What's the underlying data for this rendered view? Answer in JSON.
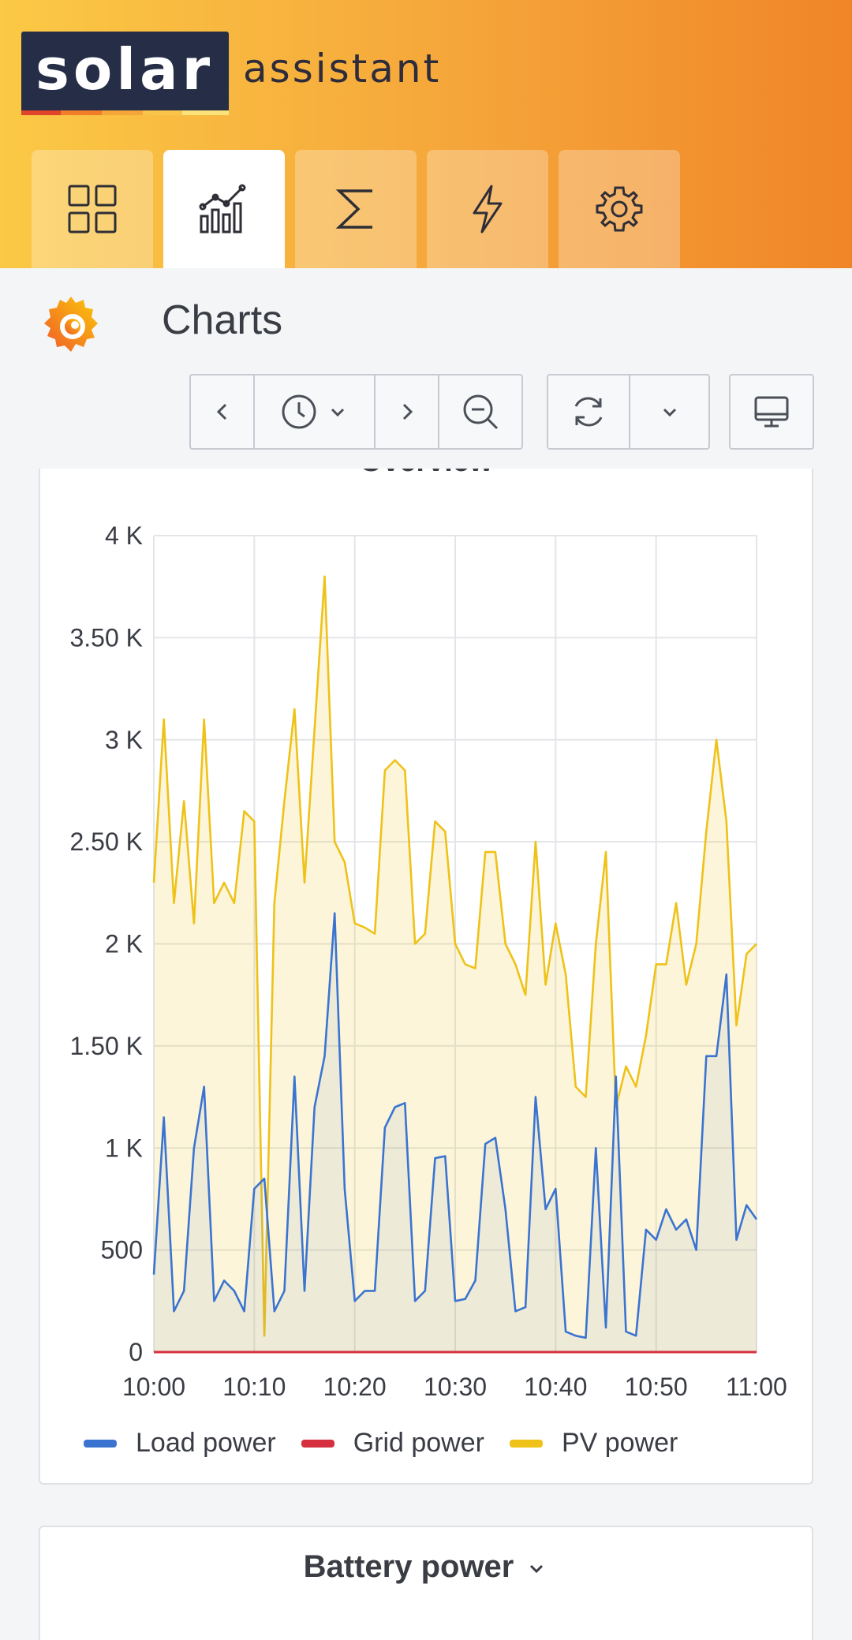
{
  "brand": {
    "logo_text": "solar",
    "logo_sub": "assistant"
  },
  "nav": {
    "tabs": [
      {
        "icon": "dashboard-grid-icon",
        "active": false
      },
      {
        "icon": "charts-icon",
        "active": true
      },
      {
        "icon": "sigma-totals-icon",
        "active": false
      },
      {
        "icon": "lightning-power-icon",
        "active": false
      },
      {
        "icon": "gear-settings-icon",
        "active": false
      }
    ]
  },
  "page": {
    "title": "Charts"
  },
  "toolbar": {
    "icons": [
      "chevron-left-icon",
      "clock-icon",
      "chevron-down-icon",
      "chevron-right-icon",
      "zoom-out-icon",
      "refresh-icon",
      "chevron-down-icon",
      "monitor-icon"
    ]
  },
  "panel1": {
    "title": "Overview"
  },
  "panel2": {
    "title": "Battery power"
  },
  "colors": {
    "load": "#3b74d0",
    "grid": "#d62f3f",
    "pv": "#eec218"
  },
  "chart_data": {
    "type": "line",
    "title": "Overview",
    "y_ticks": [
      "0",
      "500",
      "1 K",
      "1.50 K",
      "2 K",
      "2.50 K",
      "3 K",
      "3.50 K",
      "4 K"
    ],
    "x_ticks": [
      "10:00",
      "10:10",
      "10:20",
      "10:30",
      "10:40",
      "10:50",
      "11:00"
    ],
    "xlim": [
      "10:00",
      "11:00"
    ],
    "ylim": [
      0,
      4000
    ],
    "grid": true,
    "legend_position": "bottom-left",
    "series": [
      {
        "name": "Load power",
        "color": "#3b74d0",
        "x": [
          "10:00",
          "10:01",
          "10:02",
          "10:03",
          "10:04",
          "10:05",
          "10:06",
          "10:07",
          "10:08",
          "10:09",
          "10:10",
          "10:11",
          "10:12",
          "10:13",
          "10:14",
          "10:15",
          "10:16",
          "10:17",
          "10:18",
          "10:19",
          "10:20",
          "10:21",
          "10:22",
          "10:23",
          "10:24",
          "10:25",
          "10:26",
          "10:27",
          "10:28",
          "10:29",
          "10:30",
          "10:31",
          "10:32",
          "10:33",
          "10:34",
          "10:35",
          "10:36",
          "10:37",
          "10:38",
          "10:39",
          "10:40",
          "10:41",
          "10:42",
          "10:43",
          "10:44",
          "10:45",
          "10:46",
          "10:47",
          "10:48",
          "10:49",
          "10:50",
          "10:51",
          "10:52",
          "10:53",
          "10:54",
          "10:55",
          "10:56",
          "10:57",
          "10:58",
          "10:59",
          "11:00"
        ],
        "values": [
          380,
          1150,
          200,
          300,
          1000,
          1300,
          250,
          350,
          300,
          200,
          800,
          850,
          200,
          300,
          1350,
          300,
          1200,
          1450,
          2150,
          800,
          250,
          300,
          300,
          1100,
          1200,
          1220,
          250,
          300,
          950,
          960,
          250,
          260,
          350,
          1020,
          1050,
          700,
          200,
          220,
          1250,
          700,
          800,
          100,
          80,
          70,
          1000,
          120,
          1350,
          100,
          80,
          600,
          550,
          700,
          600,
          650,
          500,
          1450,
          1450,
          1850,
          550,
          720,
          650
        ]
      },
      {
        "name": "Grid power",
        "color": "#d62f3f",
        "x": [
          "10:00",
          "11:00"
        ],
        "values": [
          0,
          0
        ]
      },
      {
        "name": "PV power",
        "color": "#eec218",
        "x": [
          "10:00",
          "10:01",
          "10:02",
          "10:03",
          "10:04",
          "10:05",
          "10:06",
          "10:07",
          "10:08",
          "10:09",
          "10:10",
          "10:11",
          "10:12",
          "10:13",
          "10:14",
          "10:15",
          "10:16",
          "10:17",
          "10:18",
          "10:19",
          "10:20",
          "10:21",
          "10:22",
          "10:23",
          "10:24",
          "10:25",
          "10:26",
          "10:27",
          "10:28",
          "10:29",
          "10:30",
          "10:31",
          "10:32",
          "10:33",
          "10:34",
          "10:35",
          "10:36",
          "10:37",
          "10:38",
          "10:39",
          "10:40",
          "10:41",
          "10:42",
          "10:43",
          "10:44",
          "10:45",
          "10:46",
          "10:47",
          "10:48",
          "10:49",
          "10:50",
          "10:51",
          "10:52",
          "10:53",
          "10:54",
          "10:55",
          "10:56",
          "10:57",
          "10:58",
          "10:59",
          "11:00"
        ],
        "values": [
          2300,
          3100,
          2200,
          2700,
          2100,
          3100,
          2200,
          2300,
          2200,
          2650,
          2600,
          80,
          2200,
          2700,
          3150,
          2300,
          3050,
          3800,
          2500,
          2400,
          2100,
          2080,
          2050,
          2850,
          2900,
          2850,
          2000,
          2050,
          2600,
          2550,
          2000,
          1900,
          1880,
          2450,
          2450,
          2000,
          1900,
          1750,
          2500,
          1800,
          2100,
          1850,
          1300,
          1250,
          2000,
          2450,
          1200,
          1400,
          1300,
          1550,
          1900,
          1900,
          2200,
          1800,
          2000,
          2550,
          3000,
          2600,
          1600,
          1950,
          2000
        ]
      }
    ]
  }
}
